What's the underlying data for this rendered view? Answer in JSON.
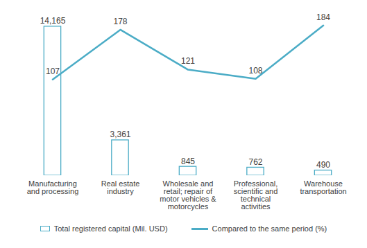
{
  "chart_data": {
    "type": "bar",
    "categories": [
      "Manufacturing and processing",
      "Real estate industry",
      "Wholesale and retail; repair of motor vehicles & motorcycles",
      "Professional, scientific and technical activities",
      "Warehouse transportation"
    ],
    "series": [
      {
        "name": "Total registered capital (Mil. USD)",
        "type": "bar",
        "color": "#4bacc6",
        "values": [
          14165,
          3361,
          845,
          762,
          490
        ],
        "value_labels": [
          "14,165",
          "3,361",
          "845",
          "762",
          "490"
        ]
      },
      {
        "name": "Compared to the same period (%)",
        "type": "line",
        "axis": "y2",
        "color": "#4bacc6",
        "values": [
          107,
          178,
          121,
          108,
          184
        ]
      }
    ],
    "ylim": [
      0,
      16000
    ],
    "y2lim": [
      -30,
      210
    ],
    "data_labels": true,
    "tick_labels": "x",
    "legend": "bottom"
  }
}
